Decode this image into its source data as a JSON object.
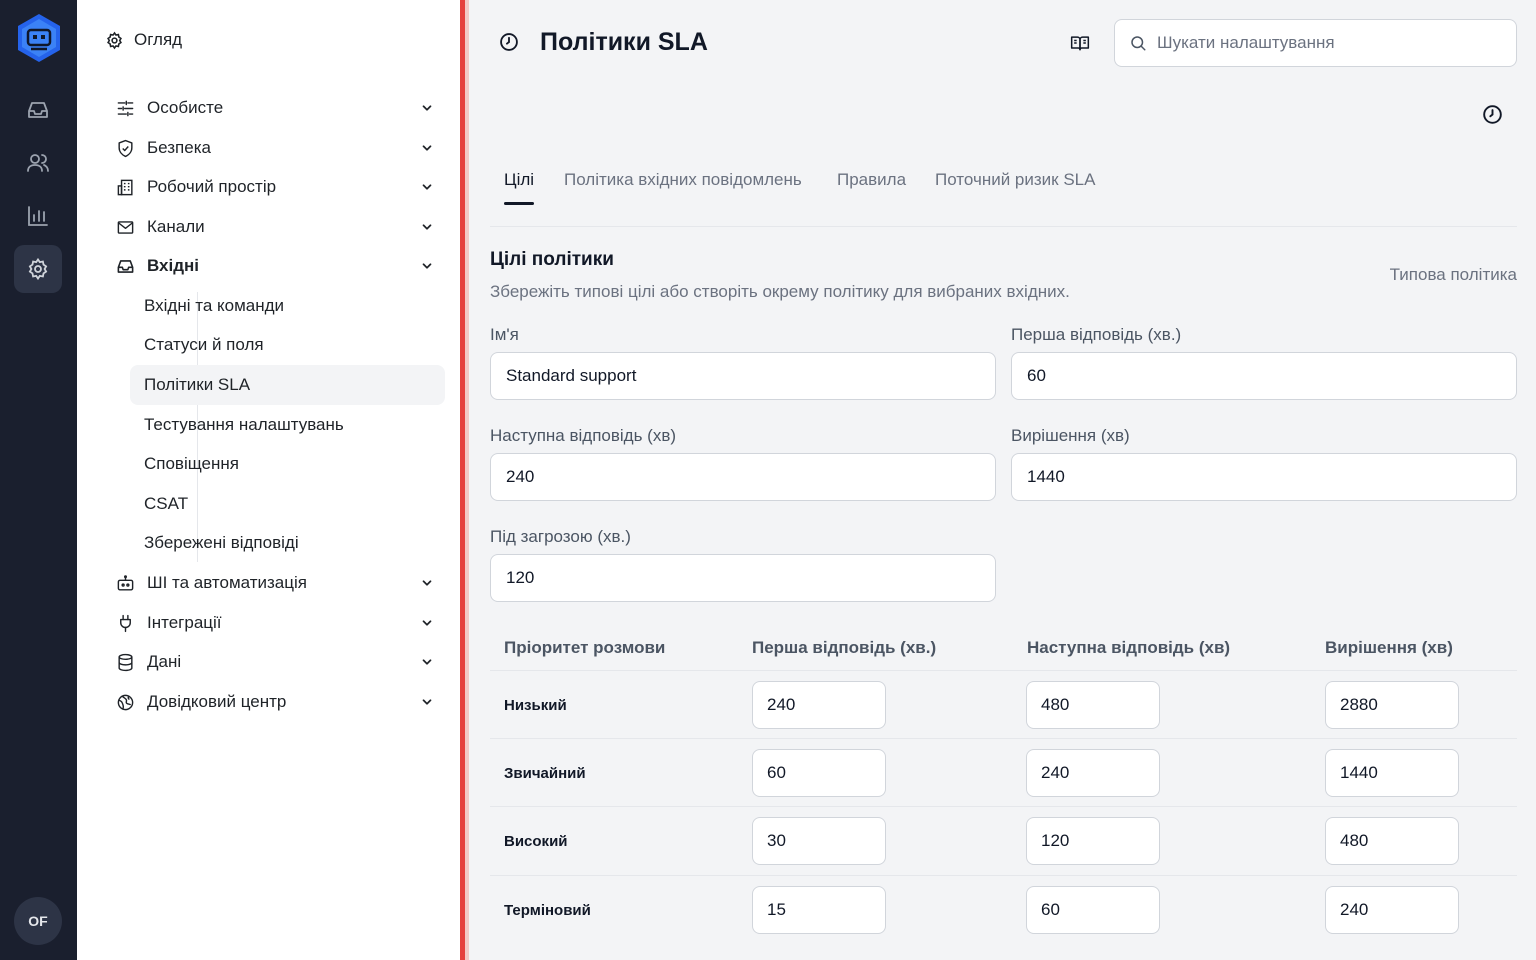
{
  "rail": {
    "icons": [
      "app-logo-icon",
      "inbox-icon",
      "users-icon",
      "bar-chart-icon",
      "settings-icon"
    ],
    "avatar": "OF",
    "colors": {
      "background": "#1a1f2e",
      "active": "#2d3446",
      "logo": "#3b82f6"
    }
  },
  "sidebar": {
    "overview": "Огляд",
    "sections": [
      {
        "label": "Особисте",
        "icon": "sliders-icon"
      },
      {
        "label": "Безпека",
        "icon": "shield-check-icon"
      },
      {
        "label": "Робочий простір",
        "icon": "building-icon"
      },
      {
        "label": "Канали",
        "icon": "mail-icon"
      },
      {
        "label": "Вхідні",
        "icon": "inbox-icon",
        "expanded": true
      },
      {
        "label": "ШІ та автоматизація",
        "icon": "bot-icon"
      },
      {
        "label": "Інтеграції",
        "icon": "plug-icon"
      },
      {
        "label": "Дані",
        "icon": "database-icon"
      },
      {
        "label": "Довідковий центр",
        "icon": "globe-icon"
      }
    ],
    "inbox_sub": [
      "Вхідні та команди",
      "Статуси й поля",
      "Політики SLA",
      "Тестування налаштувань",
      "Сповіщення",
      "CSAT",
      "Збережені відповіді"
    ],
    "active_sub": "Політики SLA"
  },
  "header": {
    "title": "Політики SLA",
    "search_placeholder": "Шукати налаштування"
  },
  "tabs": [
    "Цілі",
    "Політика вхідних повідомлень",
    "Правила",
    "Поточний ризик SLA"
  ],
  "active_tab": "Цілі",
  "section": {
    "title": "Цілі політики",
    "description": "Збережіть типові цілі або створіть окрему політику для вибраних вхідних.",
    "right_label": "Типова політика"
  },
  "form": {
    "name_label": "Ім'я",
    "name_value": "Standard support",
    "first_label": "Перша відповідь (хв.)",
    "first_value": "60",
    "next_label": "Наступна відповідь (хв)",
    "next_value": "240",
    "resolve_label": "Вирішення (хв)",
    "resolve_value": "1440",
    "risk_label": "Під загрозою (хв.)",
    "risk_value": "120"
  },
  "table": {
    "headers": [
      "Пріоритет розмови",
      "Перша відповідь (хв.)",
      "Наступна відповідь (хв)",
      "Вирішення (хв)"
    ],
    "rows": [
      {
        "priority": "Низький",
        "first": "240",
        "next": "480",
        "resolve": "2880"
      },
      {
        "priority": "Звичайний",
        "first": "60",
        "next": "240",
        "resolve": "1440"
      },
      {
        "priority": "Високий",
        "first": "30",
        "next": "120",
        "resolve": "480"
      },
      {
        "priority": "Терміновий",
        "first": "15",
        "next": "60",
        "resolve": "240"
      }
    ]
  }
}
